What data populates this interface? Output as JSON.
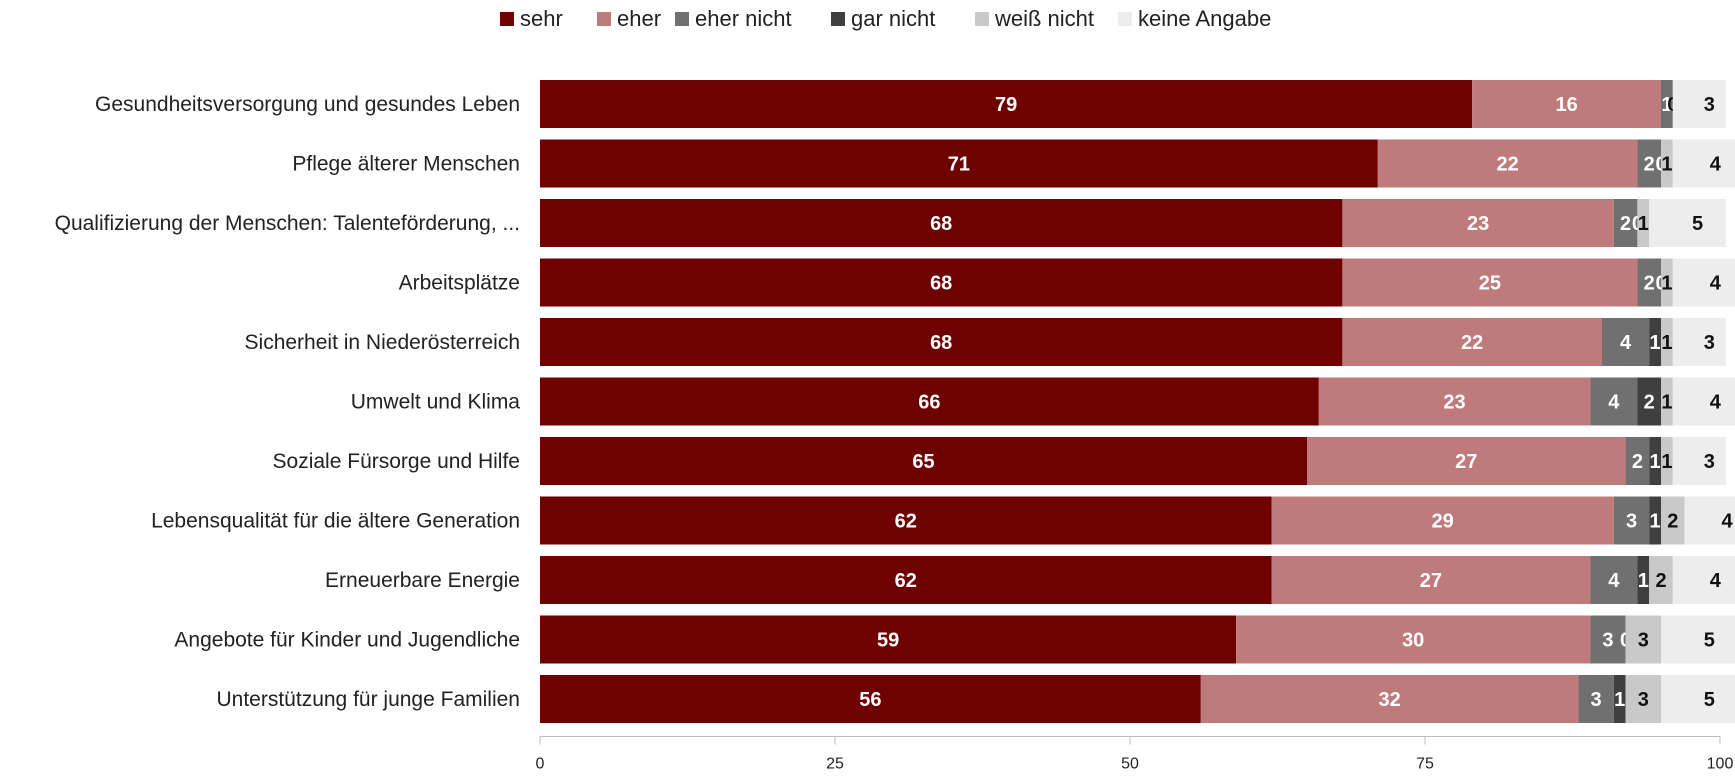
{
  "chart_data": {
    "type": "bar",
    "orientation": "horizontal",
    "stacked": true,
    "categories": [
      "Gesundheitsversorgung und gesundes Leben",
      "Pflege älterer Menschen",
      "Qualifizierung der Menschen: Talenteförderung, ...",
      "Arbeitsplätze",
      "Sicherheit in Niederösterreich",
      "Umwelt und Klima",
      "Soziale Fürsorge und Hilfe",
      "Lebensqualität für die ältere Generation",
      "Erneuerbare Energie",
      "Angebote für Kinder und Jugendliche",
      "Unterstützung für junge Familien"
    ],
    "series": [
      {
        "name": "sehr",
        "color": "#6e0000",
        "label_color": "#ffffff",
        "values": [
          79,
          71,
          68,
          68,
          68,
          66,
          65,
          62,
          62,
          59,
          56
        ]
      },
      {
        "name": "eher",
        "color": "#bf7b7b",
        "label_color": "#ffffff",
        "values": [
          16,
          22,
          23,
          25,
          22,
          23,
          27,
          29,
          27,
          30,
          32
        ]
      },
      {
        "name": "eher nicht",
        "color": "#707070",
        "label_color": "#ffffff",
        "values": [
          1,
          2,
          2,
          2,
          4,
          4,
          2,
          3,
          4,
          3,
          3
        ]
      },
      {
        "name": "gar nicht",
        "color": "#3f3f3f",
        "label_color": "#ffffff",
        "values": [
          0,
          0,
          0,
          0,
          1,
          2,
          1,
          1,
          1,
          0,
          1
        ]
      },
      {
        "name": "weiß nicht",
        "color": "#c9c9c9",
        "label_color": "#111111",
        "values": [
          0,
          1,
          1,
          1,
          1,
          1,
          1,
          2,
          2,
          3,
          3
        ]
      },
      {
        "name": "keine Angabe",
        "color": "#ededed",
        "label_color": "#111111",
        "values": [
          3,
          4,
          5,
          4,
          3,
          4,
          3,
          4,
          4,
          5,
          5
        ]
      }
    ],
    "xlim": [
      0,
      100
    ],
    "xticks": [
      0,
      25,
      50,
      75,
      100
    ],
    "legend": "top",
    "grid": false,
    "title": "",
    "xlabel": "",
    "ylabel": ""
  }
}
